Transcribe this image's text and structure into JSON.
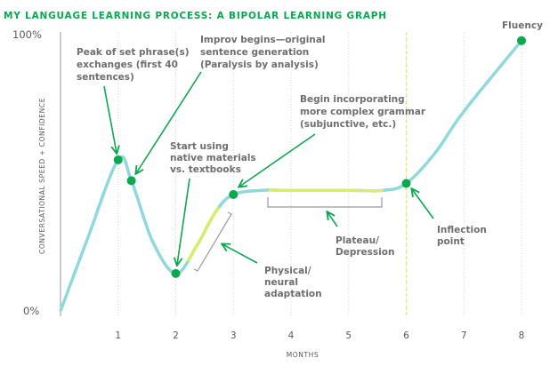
{
  "chart_data": {
    "type": "line",
    "title": "MY LANGUAGE LEARNING PROCESS: A BIPOLAR LEARNING GRAPH",
    "xlabel": "MONTHS",
    "ylabel": "CONVERSATIONAL SPEED + CONFIDENCE",
    "xlim": [
      0,
      8.3
    ],
    "ylim": [
      0,
      100
    ],
    "x_ticks": [
      "1",
      "2",
      "3",
      "4",
      "5",
      "6",
      "7",
      "8"
    ],
    "y_ticks": [
      "0%",
      "100%"
    ],
    "grid": "vertical dotted",
    "curve": {
      "x": [
        0,
        0.45,
        1,
        1.23,
        1.6,
        2,
        2.35,
        2.7,
        3,
        3.5,
        4,
        5,
        5.6,
        6,
        6.5,
        7,
        8
      ],
      "y": [
        0,
        25,
        54.5,
        47,
        25,
        13.5,
        23,
        36,
        42,
        43.5,
        43.5,
        43.5,
        43.5,
        46,
        57,
        72,
        97.5
      ]
    },
    "highlight_ranges": [
      [
        2.2,
        2.75
      ],
      [
        3.6,
        5.6
      ]
    ],
    "inflection_x": 6,
    "points": [
      {
        "x": 1,
        "y": 54.5
      },
      {
        "x": 1.23,
        "y": 47
      },
      {
        "x": 2,
        "y": 13.5
      },
      {
        "x": 3,
        "y": 42
      },
      {
        "x": 6,
        "y": 46
      },
      {
        "x": 8,
        "y": 97.5
      }
    ],
    "annotations": {
      "peak": [
        "Peak of set phrase(s)",
        "exchanges (first 40",
        "sentences)"
      ],
      "improv": [
        "Improv begins—original",
        "sentence generation",
        "(Paralysis by analysis)"
      ],
      "native": [
        "Start using",
        "native materials",
        "vs. textbooks"
      ],
      "grammar": [
        "Begin incorporating",
        "more complex grammar",
        "(subjunctive, etc.)"
      ],
      "physical": [
        "Physical/",
        "neural",
        "adaptation"
      ],
      "plateau": [
        "Plateau/",
        "Depression"
      ],
      "inflection": [
        "Inflection",
        "point"
      ],
      "fluency": "Fluency"
    },
    "colors": {
      "curve": "#8fd9dc",
      "highlight": "#dcec6a",
      "point": "#0aa84f",
      "title": "#0aa84f",
      "arrow": "#0aa84f"
    }
  }
}
